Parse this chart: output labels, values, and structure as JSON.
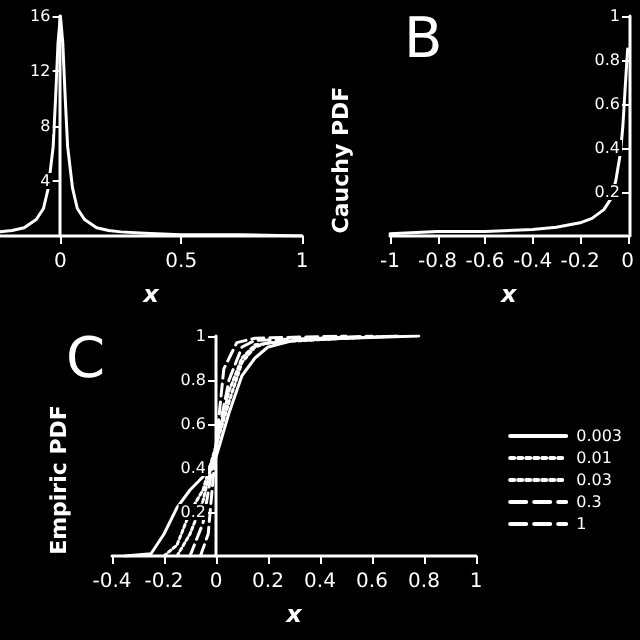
{
  "chart_data": [
    {
      "type": "line",
      "xlabel": "x",
      "xlim": [
        -0.25,
        1
      ],
      "ylim": [
        0,
        16
      ],
      "xticks": [
        0,
        0.5,
        1
      ],
      "yticks": [
        4,
        8,
        12,
        16
      ],
      "grid": false,
      "marker": "none",
      "legend": false,
      "series": [
        {
          "color": "#ffffff",
          "line_style": "solid",
          "x": [
            -0.25,
            -0.2,
            -0.15,
            -0.1,
            -0.07,
            -0.05,
            -0.03,
            -0.02,
            -0.01,
            0,
            0.01,
            0.02,
            0.03,
            0.05,
            0.07,
            0.1,
            0.15,
            0.2,
            0.25,
            0.35,
            0.5,
            0.75,
            1
          ],
          "values": [
            0.3,
            0.4,
            0.6,
            1.2,
            2,
            3.5,
            6.5,
            10,
            14,
            16,
            14,
            10,
            6.5,
            3.5,
            2,
            1.2,
            0.6,
            0.4,
            0.3,
            0.2,
            0.1,
            0.1,
            0
          ]
        }
      ]
    },
    {
      "type": "line",
      "title": "B",
      "xlabel": "x",
      "ylabel": "Cauchy PDF",
      "xlim": [
        -1,
        0
      ],
      "ylim": [
        0,
        1
      ],
      "xticks": [
        -1,
        -0.8,
        -0.6,
        -0.4,
        -0.2,
        0
      ],
      "yticks": [
        0.2,
        0.4,
        0.6,
        0.8,
        1
      ],
      "grid": false,
      "marker": "none",
      "legend": false,
      "series": [
        {
          "color": "#ffffff",
          "line_style": "solid",
          "x": [
            -1,
            -0.8,
            -0.6,
            -0.4,
            -0.3,
            -0.2,
            -0.15,
            -0.1,
            -0.07,
            -0.05,
            -0.03,
            -0.02,
            -0.01,
            0
          ],
          "values": [
            0.01,
            0.02,
            0.02,
            0.03,
            0.04,
            0.06,
            0.08,
            0.12,
            0.17,
            0.25,
            0.38,
            0.5,
            0.68,
            0.85
          ]
        }
      ]
    },
    {
      "type": "line",
      "title": "C",
      "xlabel": "x",
      "ylabel": "Empiric PDF",
      "xlim": [
        -0.4,
        1
      ],
      "ylim": [
        0,
        1
      ],
      "xticks": [
        -0.4,
        -0.2,
        0,
        0.2,
        0.4,
        0.6,
        0.8,
        1
      ],
      "yticks": [
        0.2,
        0.4,
        0.6,
        0.8,
        1
      ],
      "grid": false,
      "marker": "none",
      "legend": "right",
      "series": [
        {
          "name": "0.003",
          "color": "#ffffff",
          "line_style": "solid",
          "x": [
            -0.35,
            -0.25,
            -0.2,
            -0.15,
            -0.1,
            -0.05,
            0,
            0.05,
            0.1,
            0.15,
            0.2,
            0.3,
            0.5,
            0.78
          ],
          "values": [
            0,
            0.01,
            0.1,
            0.22,
            0.3,
            0.36,
            0.45,
            0.65,
            0.82,
            0.9,
            0.95,
            0.98,
            0.99,
            1
          ]
        },
        {
          "name": "0.01",
          "color": "#ffffff",
          "line_style": "dotted",
          "x": [
            -0.2,
            -0.15,
            -0.1,
            -0.05,
            0,
            0.05,
            0.1,
            0.15,
            0.2,
            0.5,
            0.7
          ],
          "values": [
            0,
            0.05,
            0.2,
            0.3,
            0.5,
            0.7,
            0.88,
            0.95,
            0.97,
            0.99,
            1
          ]
        },
        {
          "name": "0.03",
          "color": "#ffffff",
          "line_style": "dotted",
          "x": [
            -0.15,
            -0.1,
            -0.05,
            0,
            0.05,
            0.1,
            0.15,
            0.3,
            0.7
          ],
          "values": [
            0,
            0.1,
            0.25,
            0.5,
            0.75,
            0.9,
            0.96,
            0.98,
            1
          ]
        },
        {
          "name": "0.3",
          "color": "#ffffff",
          "line_style": "dashed",
          "x": [
            -0.1,
            -0.05,
            0,
            0.05,
            0.1,
            0.15,
            0.4,
            0.6
          ],
          "values": [
            0,
            0.15,
            0.5,
            0.8,
            0.95,
            0.98,
            0.99,
            1
          ]
        },
        {
          "name": "1",
          "color": "#ffffff",
          "line_style": "dashed",
          "x": [
            -0.06,
            -0.03,
            0,
            0.03,
            0.08,
            0.15,
            0.5
          ],
          "values": [
            0,
            0.1,
            0.5,
            0.85,
            0.97,
            0.99,
            1
          ]
        }
      ]
    }
  ]
}
